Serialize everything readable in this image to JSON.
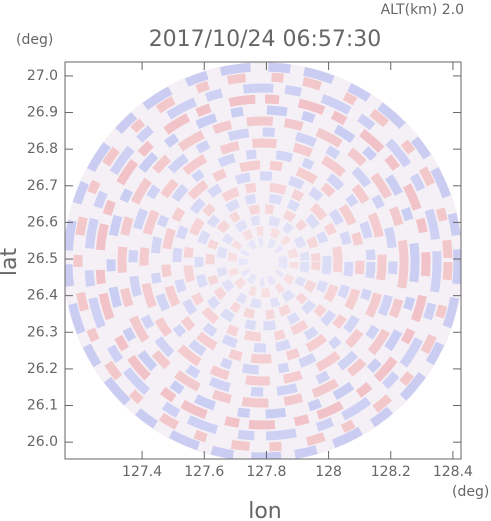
{
  "chart_data": {
    "type": "heatmap",
    "title": "2017/10/24 06:57:30",
    "annotation": "ALT(km) 2.0",
    "x_label": "lon",
    "y_label": "lat",
    "x_unit": "(deg)",
    "y_unit": "(deg)",
    "xlim": [
      127.152,
      128.426
    ],
    "ylim": [
      25.954,
      27.038
    ],
    "xticks": [
      127.4,
      127.6,
      127.8,
      128.0,
      128.2,
      128.4
    ],
    "yticks": [
      {
        "value": 26.0,
        "label": "26.0"
      },
      26.1,
      26.2,
      26.3,
      26.4,
      26.5,
      26.6,
      26.7,
      26.8,
      26.9,
      {
        "value": 27.0,
        "label": "27.0"
      }
    ],
    "grid": false
  }
}
